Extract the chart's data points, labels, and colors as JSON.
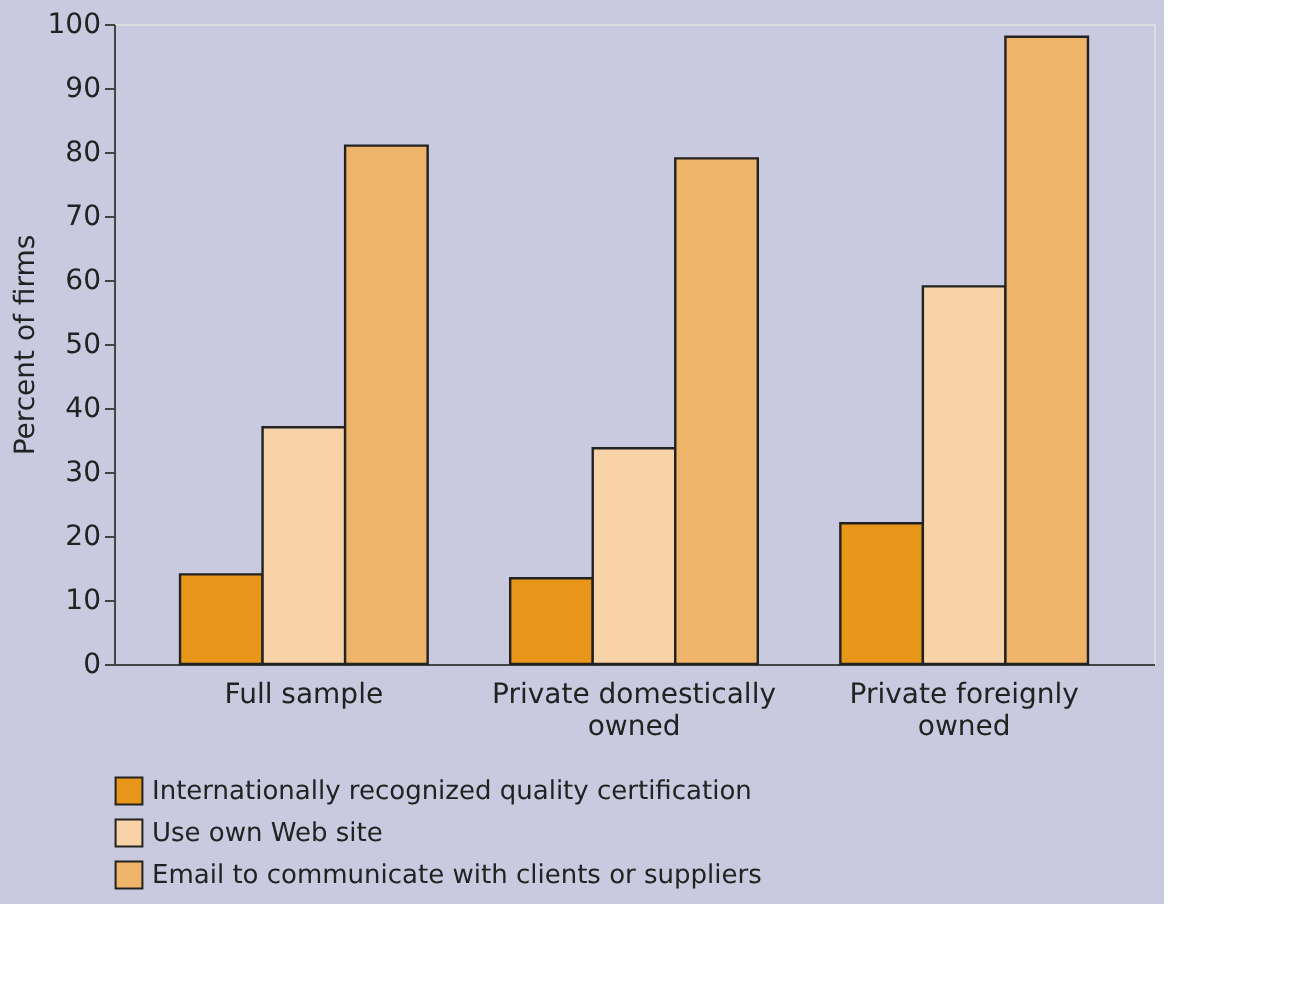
{
  "chart_data": {
    "type": "bar",
    "ylabel": "Percent of firms",
    "categories": [
      "Full sample",
      "Private domestically owned",
      "Private foreignly owned"
    ],
    "series": [
      {
        "name": "Internationally recognized quality certification",
        "color": "#e8961a",
        "values": [
          14,
          13.4,
          22
        ]
      },
      {
        "name": "Use own Web site",
        "color": "#f8d3a7",
        "values": [
          37,
          33.7,
          59
        ]
      },
      {
        "name": "Email to communicate with clients or suppliers",
        "color": "#eeb46a",
        "values": [
          81,
          79,
          98
        ]
      }
    ],
    "ylim": [
      0,
      100
    ],
    "yticks": [
      0,
      10,
      20,
      30,
      40,
      50,
      60,
      70,
      80,
      90,
      100
    ],
    "grid": false,
    "legend": "bottom"
  }
}
